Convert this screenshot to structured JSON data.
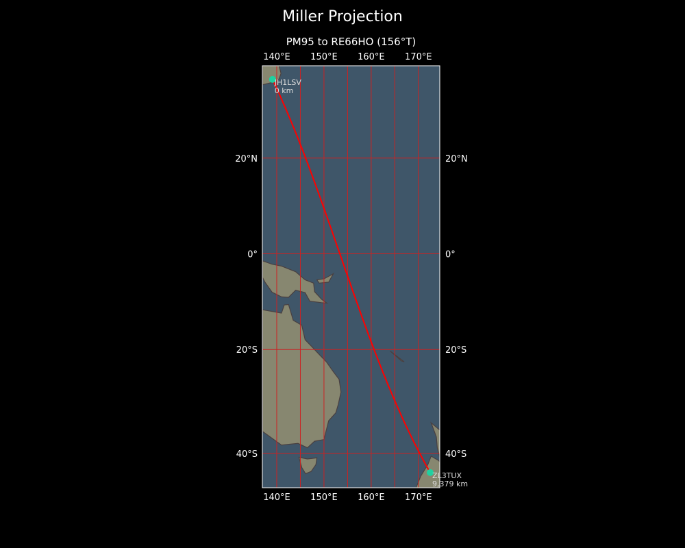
{
  "title": "Miller Projection",
  "subtitle": "PM95 to RE66HO (156°T)",
  "map": {
    "projection": "Miller",
    "extent": {
      "lon": [
        137,
        174.6
      ],
      "lat": [
        -46,
        37.9
      ]
    },
    "gridline_color": "#cc2222",
    "path_color": "#ff0000",
    "marker_color": "#1fd1a0",
    "ocean_color": "#3f5669",
    "land_color": "#878770",
    "lon_ticks": [
      "140°E",
      "150°E",
      "160°E",
      "170°E"
    ],
    "lat_ticks": [
      "20°N",
      "0°",
      "20°S",
      "40°S"
    ],
    "start": {
      "call": "JH1LSV",
      "distance": "0 km",
      "lon": 139.1,
      "lat": 35.4
    },
    "end": {
      "call": "ZL3TUX",
      "distance": "9,379 km",
      "lon": 172.5,
      "lat": -43.4
    }
  }
}
